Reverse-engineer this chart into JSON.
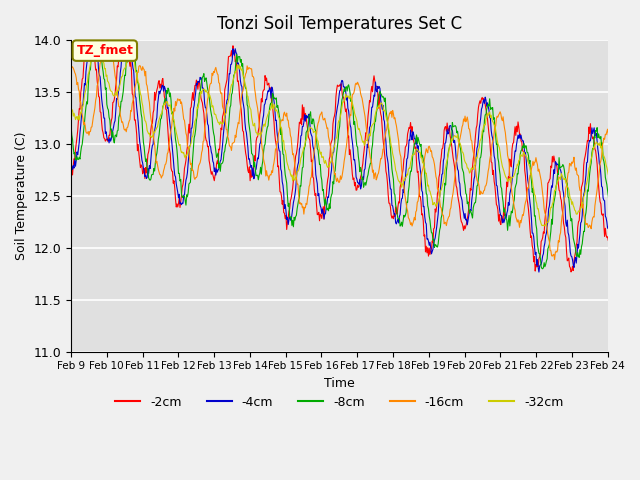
{
  "title": "Tonzi Soil Temperatures Set C",
  "xlabel": "Time",
  "ylabel": "Soil Temperature (C)",
  "ylim": [
    11.0,
    14.0
  ],
  "n_days": 16,
  "xtick_labels": [
    "Feb 9",
    "Feb 10",
    "Feb 11",
    "Feb 12",
    "Feb 13",
    "Feb 14",
    "Feb 15",
    "Feb 16",
    "Feb 17",
    "Feb 18",
    "Feb 19",
    "Feb 20",
    "Feb 21",
    "Feb 22",
    "Feb 23",
    "Feb 24"
  ],
  "series_colors": {
    "-2cm": "#ff0000",
    "-4cm": "#0000cc",
    "-8cm": "#00aa00",
    "-16cm": "#ff8800",
    "-32cm": "#cccc00"
  },
  "legend_label": "TZ_fmet",
  "plot_bg_color": "#e0e0e0",
  "fig_bg_color": "#f0f0f0",
  "grid_color": "#ffffff",
  "pts_per_day": 48
}
